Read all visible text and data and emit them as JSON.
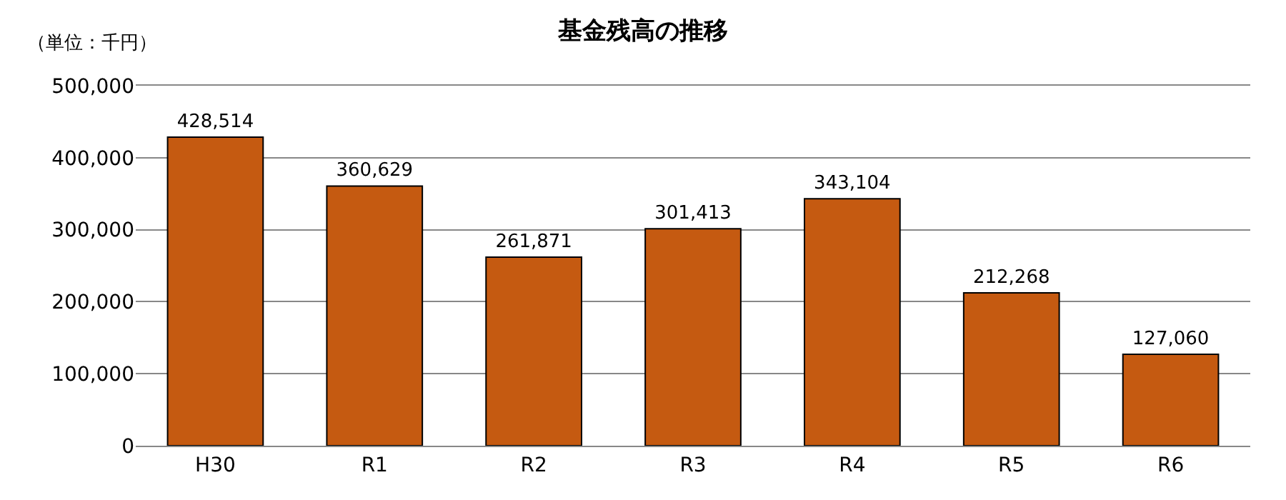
{
  "chart_data": {
    "type": "bar",
    "title": "基金残高の推移",
    "annotations": [
      "（単位：千円）"
    ],
    "categories": [
      "H30",
      "R1",
      "R2",
      "R3",
      "R4",
      "R5",
      "R6"
    ],
    "values": [
      428514,
      360629,
      261871,
      301413,
      343104,
      212268,
      127060
    ],
    "color": "#c55a11",
    "ylim": [
      0,
      500000
    ],
    "yticks": [
      {
        "value": 0,
        "label": "0"
      },
      {
        "value": 100000,
        "label": "100,000"
      },
      {
        "value": 200000,
        "label": "200,000"
      },
      {
        "value": 300000,
        "label": "300,000"
      },
      {
        "value": 400000,
        "label": "400,000"
      },
      {
        "value": 500000,
        "label": "500,000"
      }
    ],
    "value_labels": [
      "428,514",
      "360,629",
      "261,871",
      "301,413",
      "343,104",
      "212,268",
      "127,060"
    ],
    "grid": "y",
    "legend": false
  }
}
